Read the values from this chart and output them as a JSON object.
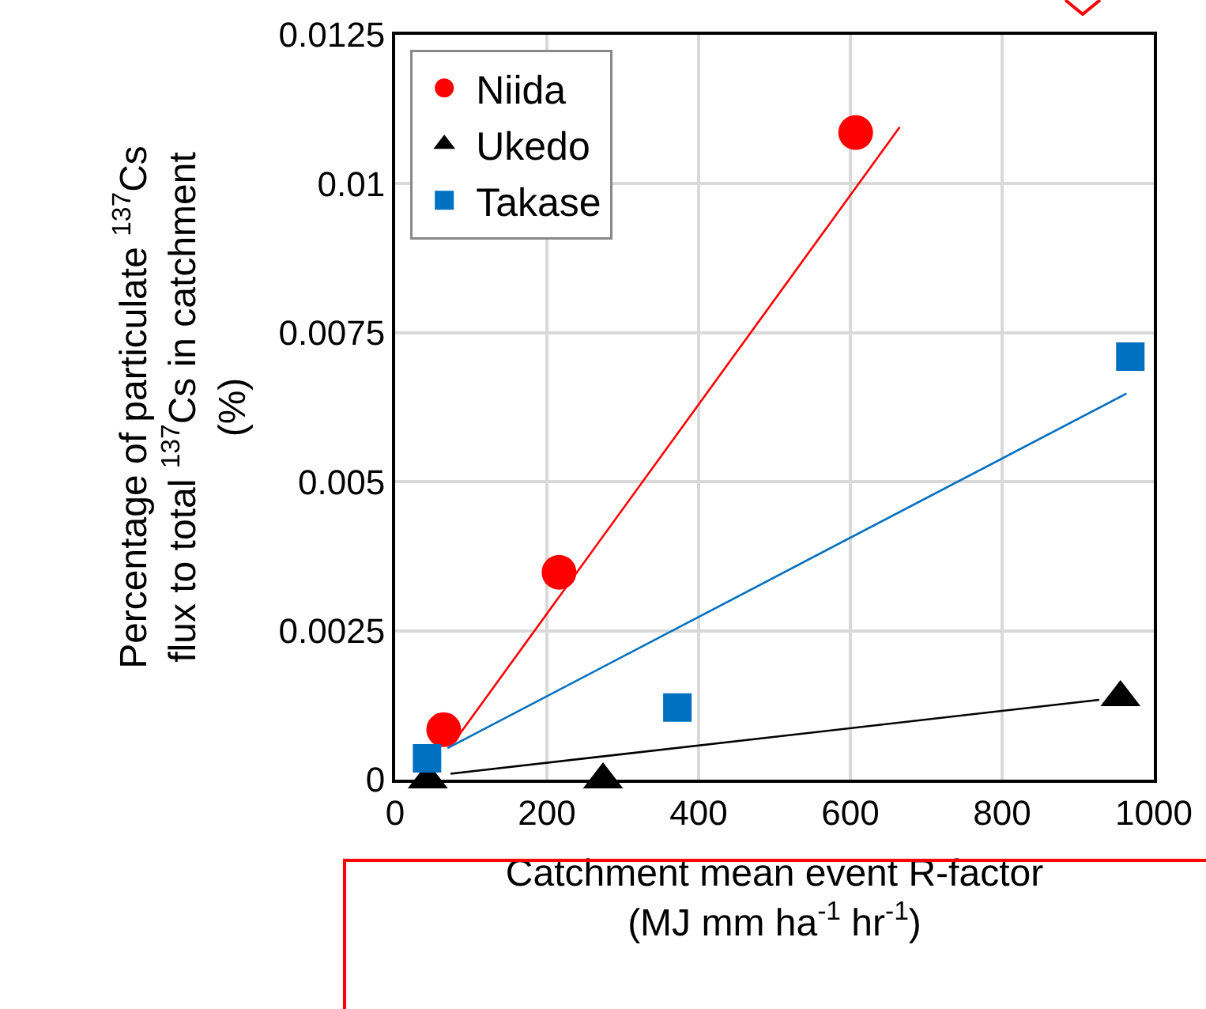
{
  "chart_data": {
    "type": "scatter",
    "xlabel": "Catchment mean event R-factor\n(MJ mm ha$^{-1}$ hr$^{-1}$)",
    "ylabel": "Percentage of particulate $^{137}$Cs\nflux to total $^{137}$Cs in catchment\n(%)",
    "xlim": [
      0,
      1000
    ],
    "xticks": [
      0,
      200,
      400,
      600,
      800,
      1000
    ],
    "ylim": [
      0,
      0.0125
    ],
    "yticks": [
      {
        "value": 0,
        "label": "0"
      },
      {
        "value": 0.0025,
        "label": "0.0025"
      },
      {
        "value": 0.005,
        "label": "0.005"
      },
      {
        "value": 0.0075,
        "label": "0.0075"
      },
      {
        "value": 0.01,
        "label": "0.01"
      },
      {
        "value": 0.0125,
        "label": "0.0125"
      }
    ],
    "grid": true,
    "legend": "top left",
    "series": [
      {
        "name": "Niida",
        "marker": "circle",
        "color": "#ff0000",
        "x": [
          64,
          216,
          607
        ],
        "values": [
          0.00084,
          0.00348,
          0.01086
        ]
      },
      {
        "name": "Ukedo",
        "marker": "triangle",
        "color": "#000000",
        "x": [
          43,
          274,
          956
        ],
        "values": [
          0,
          0,
          0.00138
        ]
      },
      {
        "name": "Takase",
        "marker": "square",
        "color": "#0070c0",
        "x": [
          42,
          372,
          969
        ],
        "values": [
          0.00036,
          0.00121,
          0.0071
        ]
      },
      {
        "type": "line",
        "marker": "none",
        "color": "#ff0000",
        "x": [
          83,
          665
        ],
        "values": [
          0.00073,
          0.01095
        ]
      },
      {
        "type": "line",
        "marker": "none",
        "color": "#000000",
        "x": [
          73,
          928
        ],
        "values": [
          0.0001,
          0.00134
        ]
      },
      {
        "type": "line",
        "marker": "none",
        "color": "#0070c0",
        "x": [
          69,
          964
        ],
        "values": [
          0.00053,
          0.00648
        ]
      }
    ]
  }
}
